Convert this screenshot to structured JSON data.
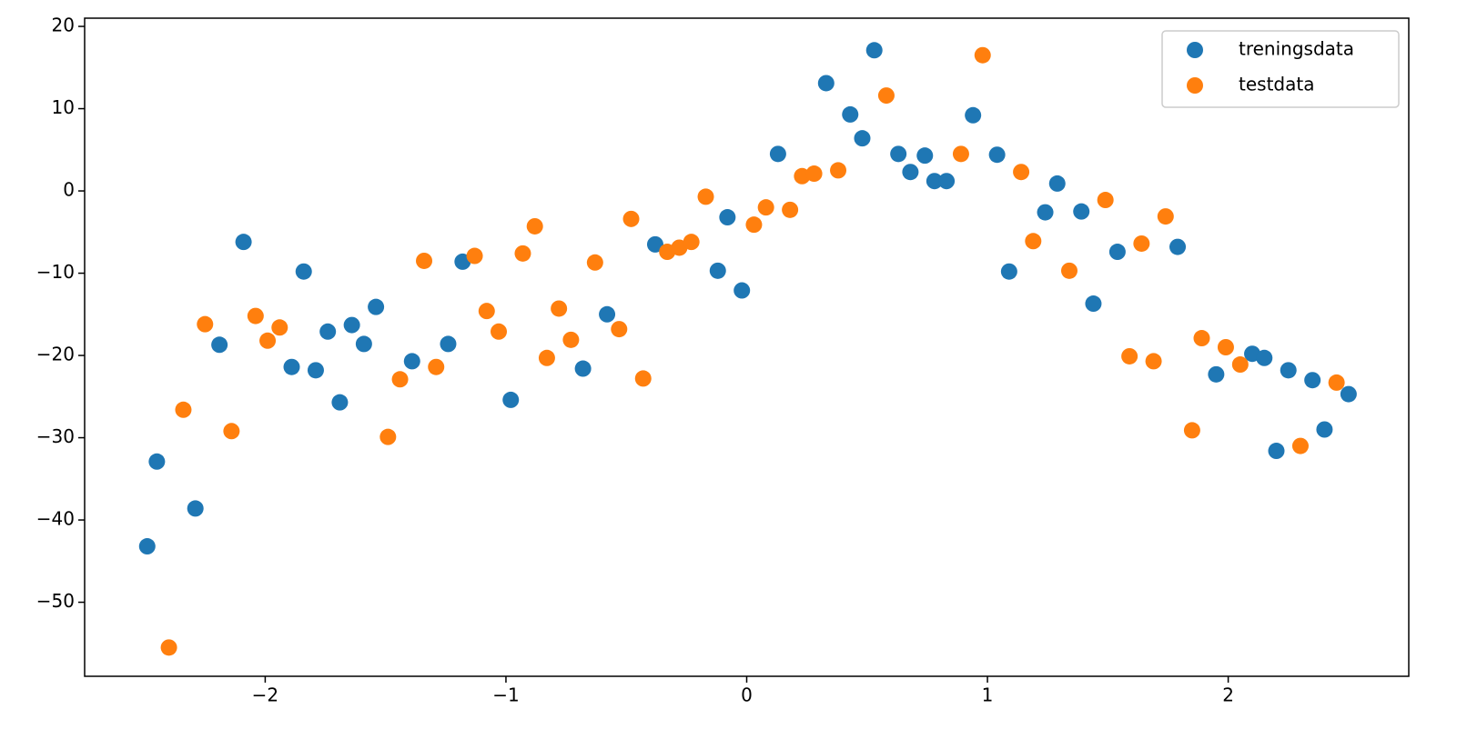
{
  "chart_data": {
    "type": "scatter",
    "xlim": [
      -2.75,
      2.75
    ],
    "ylim": [
      -59,
      21
    ],
    "xticks": [
      {
        "value": -2,
        "label": "−2"
      },
      {
        "value": -1,
        "label": "−1"
      },
      0,
      1,
      2
    ],
    "yticks": [
      {
        "value": -50,
        "label": "−50"
      },
      {
        "value": -40,
        "label": "−40"
      },
      {
        "value": -30,
        "label": "−30"
      },
      {
        "value": -20,
        "label": "−20"
      },
      {
        "value": -10,
        "label": "−10"
      },
      0,
      10,
      20
    ],
    "legend": "upper right",
    "series": [
      {
        "name": "treningsdata",
        "color": "#1f77b4",
        "x": [
          -2.49,
          -2.45,
          -2.29,
          -2.19,
          -2.09,
          -1.89,
          -1.84,
          -1.79,
          -1.74,
          -1.69,
          -1.64,
          -1.59,
          -1.54,
          -1.39,
          -1.24,
          -1.18,
          -0.98,
          -0.68,
          -0.58,
          -0.38,
          -0.12,
          -0.08,
          -0.02,
          0.13,
          0.33,
          0.43,
          0.48,
          0.53,
          0.63,
          0.68,
          0.74,
          0.78,
          0.83,
          0.94,
          1.04,
          1.09,
          1.24,
          1.29,
          1.39,
          1.44,
          1.54,
          1.79,
          1.95,
          2.1,
          2.15,
          2.2,
          2.25,
          2.35,
          2.4,
          2.5
        ],
        "values": [
          -43.2,
          -32.9,
          -38.6,
          -18.7,
          -6.2,
          -21.4,
          -9.8,
          -21.8,
          -17.1,
          -25.7,
          -16.3,
          -18.6,
          -14.1,
          -20.7,
          -18.6,
          -8.6,
          -25.4,
          -21.6,
          -15.0,
          -6.5,
          -9.7,
          -3.2,
          -12.1,
          4.5,
          13.1,
          9.3,
          6.4,
          17.1,
          4.5,
          2.3,
          4.3,
          1.2,
          1.2,
          9.2,
          4.4,
          -9.8,
          -2.6,
          0.9,
          -2.5,
          -13.7,
          -7.4,
          -6.8,
          -22.3,
          -19.8,
          -20.3,
          -31.6,
          -21.8,
          -23.0,
          -29.0,
          -24.7
        ]
      },
      {
        "name": "testdata",
        "color": "#ff7f0e",
        "x": [
          -2.4,
          -2.34,
          -2.25,
          -2.14,
          -2.04,
          -1.99,
          -1.94,
          -1.49,
          -1.44,
          -1.34,
          -1.29,
          -1.13,
          -1.08,
          -1.03,
          -0.93,
          -0.88,
          -0.83,
          -0.78,
          -0.73,
          -0.63,
          -0.53,
          -0.48,
          -0.43,
          -0.33,
          -0.28,
          -0.23,
          -0.17,
          0.03,
          0.08,
          0.18,
          0.23,
          0.28,
          0.38,
          0.58,
          0.89,
          0.98,
          1.14,
          1.19,
          1.34,
          1.49,
          1.59,
          1.64,
          1.69,
          1.74,
          1.85,
          1.89,
          1.99,
          2.05,
          2.3,
          2.45
        ],
        "values": [
          -55.5,
          -26.6,
          -16.2,
          -29.2,
          -15.2,
          -18.2,
          -16.6,
          -29.9,
          -22.9,
          -8.5,
          -21.4,
          -7.9,
          -14.6,
          -17.1,
          -7.6,
          -4.3,
          -20.3,
          -14.3,
          -18.1,
          -8.7,
          -16.8,
          -3.4,
          -22.8,
          -7.4,
          -6.9,
          -6.2,
          -0.7,
          -4.1,
          -2.0,
          -2.3,
          1.8,
          2.1,
          2.5,
          11.6,
          4.5,
          16.5,
          2.3,
          -6.1,
          -9.7,
          -1.1,
          -20.1,
          -6.4,
          -20.7,
          -3.1,
          -29.1,
          -17.9,
          -19.0,
          -21.1,
          -31.0,
          -23.3
        ]
      }
    ]
  }
}
